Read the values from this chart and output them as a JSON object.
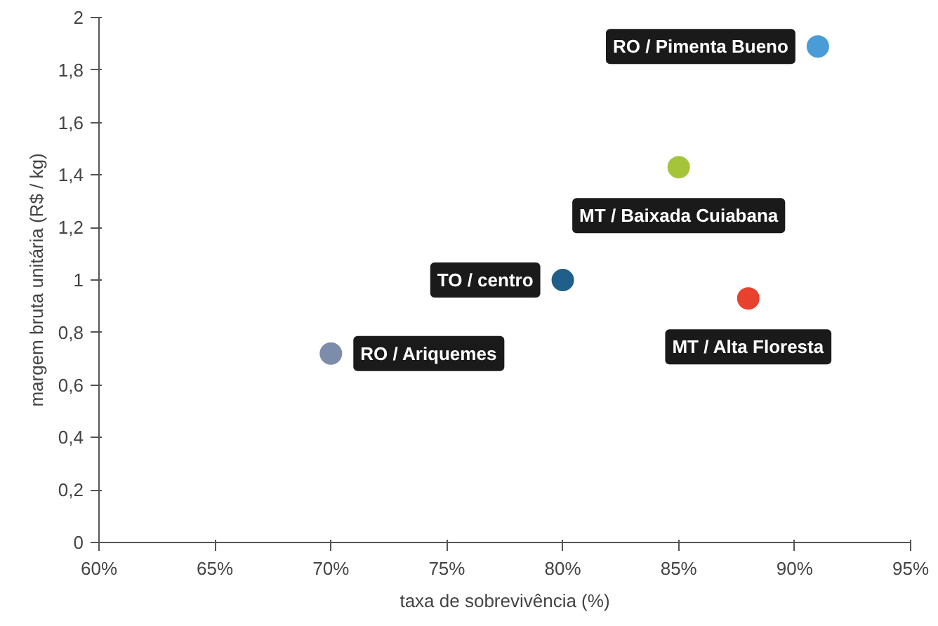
{
  "chart_data": {
    "type": "scatter",
    "xlabel": "taxa de sobrevivência (%)",
    "ylabel": "margem bruta unitária (R$ / kg)",
    "x": [
      91,
      85,
      80,
      88,
      70
    ],
    "values": [
      1.89,
      1.43,
      1.0,
      0.93,
      0.72
    ],
    "colors": [
      "#4a9cd8",
      "#a5c43a",
      "#1f5f8a",
      "#e8412e",
      "#7d8cab"
    ],
    "marker": "circle",
    "grid": false,
    "xlim": [
      60,
      95
    ],
    "xticks": [
      {
        "value": 60,
        "label": "60%"
      },
      {
        "value": 65,
        "label": "65%"
      },
      {
        "value": 70,
        "label": "70%"
      },
      {
        "value": 75,
        "label": "75%"
      },
      {
        "value": 80,
        "label": "80%"
      },
      {
        "value": 85,
        "label": "85%"
      },
      {
        "value": 90,
        "label": "90%"
      },
      {
        "value": 95,
        "label": "95%"
      }
    ],
    "ylim": [
      0,
      2
    ],
    "yticks": [
      0,
      {
        "value": 0.2,
        "label": "0,2"
      },
      {
        "value": 0.4,
        "label": "0,4"
      },
      {
        "value": 0.6,
        "label": "0,6"
      },
      {
        "value": 0.8,
        "label": "0,8"
      },
      1,
      {
        "value": 1.2,
        "label": "1,2"
      },
      {
        "value": 1.4,
        "label": "1,4"
      },
      {
        "value": 1.6,
        "label": "1,6"
      },
      {
        "value": 1.8,
        "label": "1,8"
      },
      2
    ],
    "annotations": [
      {
        "text": "RO / Pimenta Bueno",
        "x": 91,
        "y": 1.89
      },
      {
        "text": "MT / Baixada Cuiabana",
        "x": 85,
        "y": 1.43
      },
      {
        "text": "TO / centro",
        "x": 80,
        "y": 1.0
      },
      {
        "text": "MT / Alta Floresta",
        "x": 88,
        "y": 0.93
      },
      {
        "text": "RO / Ariquemes",
        "x": 70,
        "y": 0.72
      }
    ]
  }
}
